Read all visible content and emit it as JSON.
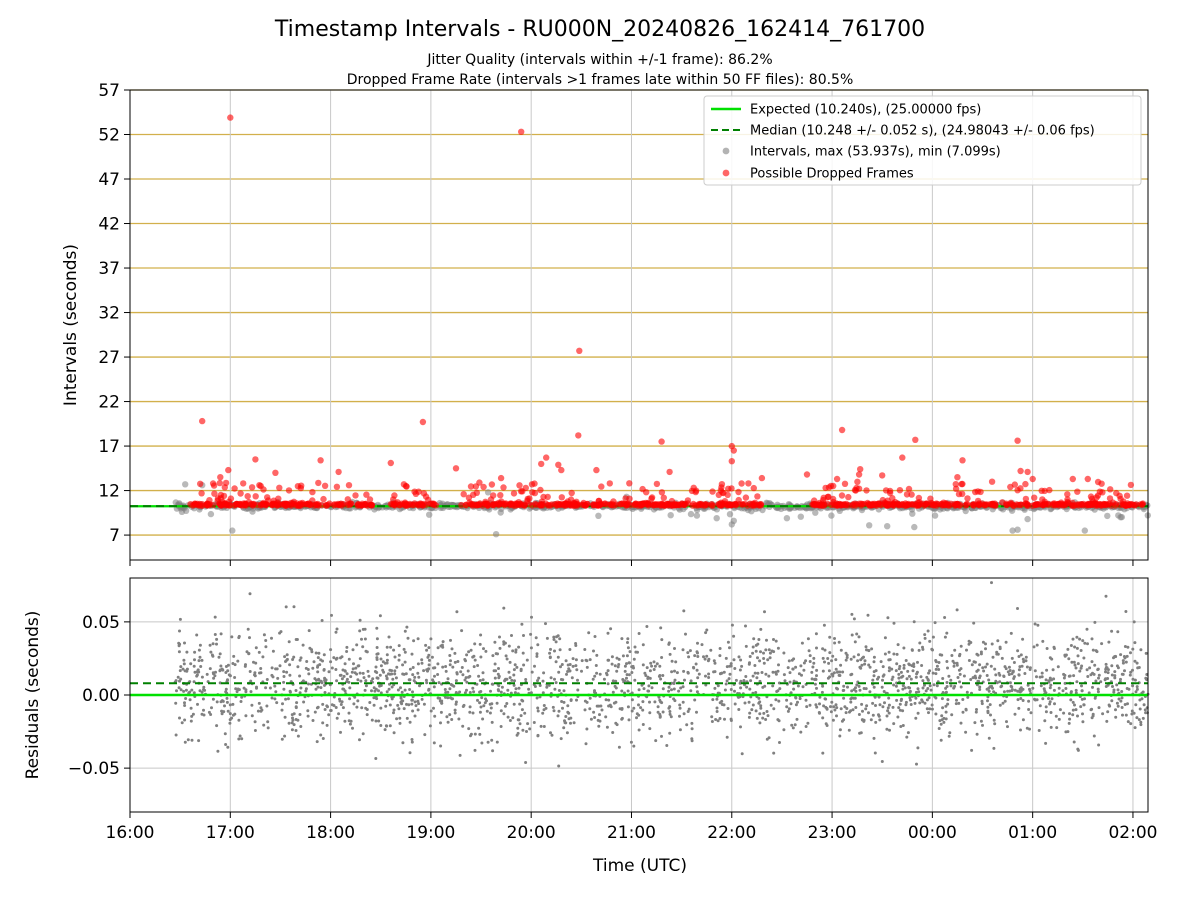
{
  "title": "Timestamp Intervals - RU000N_20240826_162414_761700",
  "subtitle_1": "Jitter Quality (intervals within +/-1 frame): 86.2%",
  "subtitle_2": "Dropped Frame Rate (intervals >1 frames late within 50 FF files): 80.5%",
  "colors": {
    "expected": "#00e000",
    "median": "#008000",
    "intervals": "#808080",
    "dropped": "#ff0000",
    "hgrid_top": "#d2b04c",
    "vgrid": "#c8c8c8"
  },
  "chart_data": [
    {
      "type": "scatter",
      "panel": "intervals",
      "xlabel": "",
      "ylabel": "Intervals (seconds)",
      "xlim": [
        16.0,
        26.15
      ],
      "ylim": [
        4.2,
        57.0
      ],
      "yticks": [
        7,
        12,
        17,
        22,
        27,
        32,
        37,
        42,
        47,
        52,
        57
      ],
      "grid": true,
      "legend_position": "top-right",
      "legend": [
        "Expected (10.240s), (25.00000 fps)",
        "Median (10.248 +/- 0.052 s), (24.98043 +/- 0.06 fps)",
        "Intervals, max (53.937s), min (7.099s)",
        "Possible Dropped Frames"
      ],
      "expected_value": 10.24,
      "median_value": 10.248,
      "intervals_time_range": [
        16.45,
        26.15
      ],
      "dropped_time_segments": [
        [
          16.6,
          18.45
        ],
        [
          18.6,
          19.05
        ],
        [
          19.3,
          21.3
        ],
        [
          21.3,
          22.3
        ],
        [
          22.8,
          26.1
        ]
      ],
      "dropped_points": [
        {
          "x": 17.0,
          "y": 53.9
        },
        {
          "x": 19.9,
          "y": 52.3
        },
        {
          "x": 20.48,
          "y": 27.7
        },
        {
          "x": 16.72,
          "y": 19.8
        },
        {
          "x": 18.92,
          "y": 19.7
        },
        {
          "x": 23.1,
          "y": 18.8
        },
        {
          "x": 20.47,
          "y": 18.2
        },
        {
          "x": 23.83,
          "y": 17.7
        },
        {
          "x": 24.85,
          "y": 17.6
        },
        {
          "x": 21.3,
          "y": 17.5
        },
        {
          "x": 22.0,
          "y": 17.0
        },
        {
          "x": 22.02,
          "y": 16.5
        },
        {
          "x": 20.15,
          "y": 15.7
        },
        {
          "x": 23.7,
          "y": 15.7
        },
        {
          "x": 17.25,
          "y": 15.5
        },
        {
          "x": 17.9,
          "y": 15.4
        },
        {
          "x": 22.0,
          "y": 15.3
        },
        {
          "x": 18.6,
          "y": 15.1
        },
        {
          "x": 20.1,
          "y": 15.0
        },
        {
          "x": 20.27,
          "y": 14.9
        },
        {
          "x": 24.3,
          "y": 15.4
        },
        {
          "x": 19.25,
          "y": 14.5
        },
        {
          "x": 20.65,
          "y": 14.3
        },
        {
          "x": 23.28,
          "y": 14.4
        },
        {
          "x": 20.3,
          "y": 14.3
        },
        {
          "x": 18.08,
          "y": 14.1
        },
        {
          "x": 21.38,
          "y": 14.1
        },
        {
          "x": 16.98,
          "y": 14.3
        },
        {
          "x": 24.88,
          "y": 14.2
        },
        {
          "x": 24.95,
          "y": 14.1
        },
        {
          "x": 17.45,
          "y": 14.0
        },
        {
          "x": 22.75,
          "y": 13.8
        },
        {
          "x": 23.27,
          "y": 13.8
        },
        {
          "x": 23.5,
          "y": 13.7
        },
        {
          "x": 22.3,
          "y": 13.4
        },
        {
          "x": 25.55,
          "y": 13.3
        },
        {
          "x": 25.4,
          "y": 13.3
        },
        {
          "x": 23.05,
          "y": 13.3
        },
        {
          "x": 16.9,
          "y": 13.5
        },
        {
          "x": 25.0,
          "y": 13.3
        },
        {
          "x": 24.25,
          "y": 13.5
        },
        {
          "x": 19.7,
          "y": 13.4
        }
      ],
      "low_points": [
        {
          "x": 17.02,
          "y": 7.5
        },
        {
          "x": 19.65,
          "y": 7.1
        },
        {
          "x": 22.0,
          "y": 8.2
        },
        {
          "x": 22.02,
          "y": 8.6
        },
        {
          "x": 23.37,
          "y": 8.1
        },
        {
          "x": 23.55,
          "y": 8.0
        },
        {
          "x": 23.82,
          "y": 7.9
        },
        {
          "x": 24.85,
          "y": 7.6
        },
        {
          "x": 24.8,
          "y": 7.5
        },
        {
          "x": 25.52,
          "y": 7.5
        },
        {
          "x": 16.72,
          "y": 12.6
        },
        {
          "x": 16.55,
          "y": 12.7
        },
        {
          "x": 19.57,
          "y": 11.8
        },
        {
          "x": 20.95,
          "y": 11.3
        },
        {
          "x": 22.55,
          "y": 8.9
        },
        {
          "x": 21.85,
          "y": 8.9
        },
        {
          "x": 23.8,
          "y": 9.4
        },
        {
          "x": 24.95,
          "y": 8.8
        }
      ]
    },
    {
      "type": "scatter",
      "panel": "residuals",
      "xlabel": "Time (UTC)",
      "ylabel": "Residuals (seconds)",
      "xlim": [
        16.0,
        26.15
      ],
      "ylim": [
        -0.08,
        0.08
      ],
      "yticks": [
        -0.05,
        0.0,
        0.05
      ],
      "ytick_labels": [
        "−0.05",
        "0.00",
        "0.05"
      ],
      "xticks": [
        16,
        17,
        18,
        19,
        20,
        21,
        22,
        23,
        24,
        25,
        26
      ],
      "xtick_labels": [
        "16:00",
        "17:00",
        "18:00",
        "19:00",
        "20:00",
        "21:00",
        "22:00",
        "23:00",
        "00:00",
        "01:00",
        "02:00"
      ],
      "grid": true,
      "expected_residual": 0.0,
      "median_residual": 0.008,
      "residual_time_range": [
        16.45,
        26.15
      ],
      "residual_spread_sigma": 0.018
    }
  ]
}
